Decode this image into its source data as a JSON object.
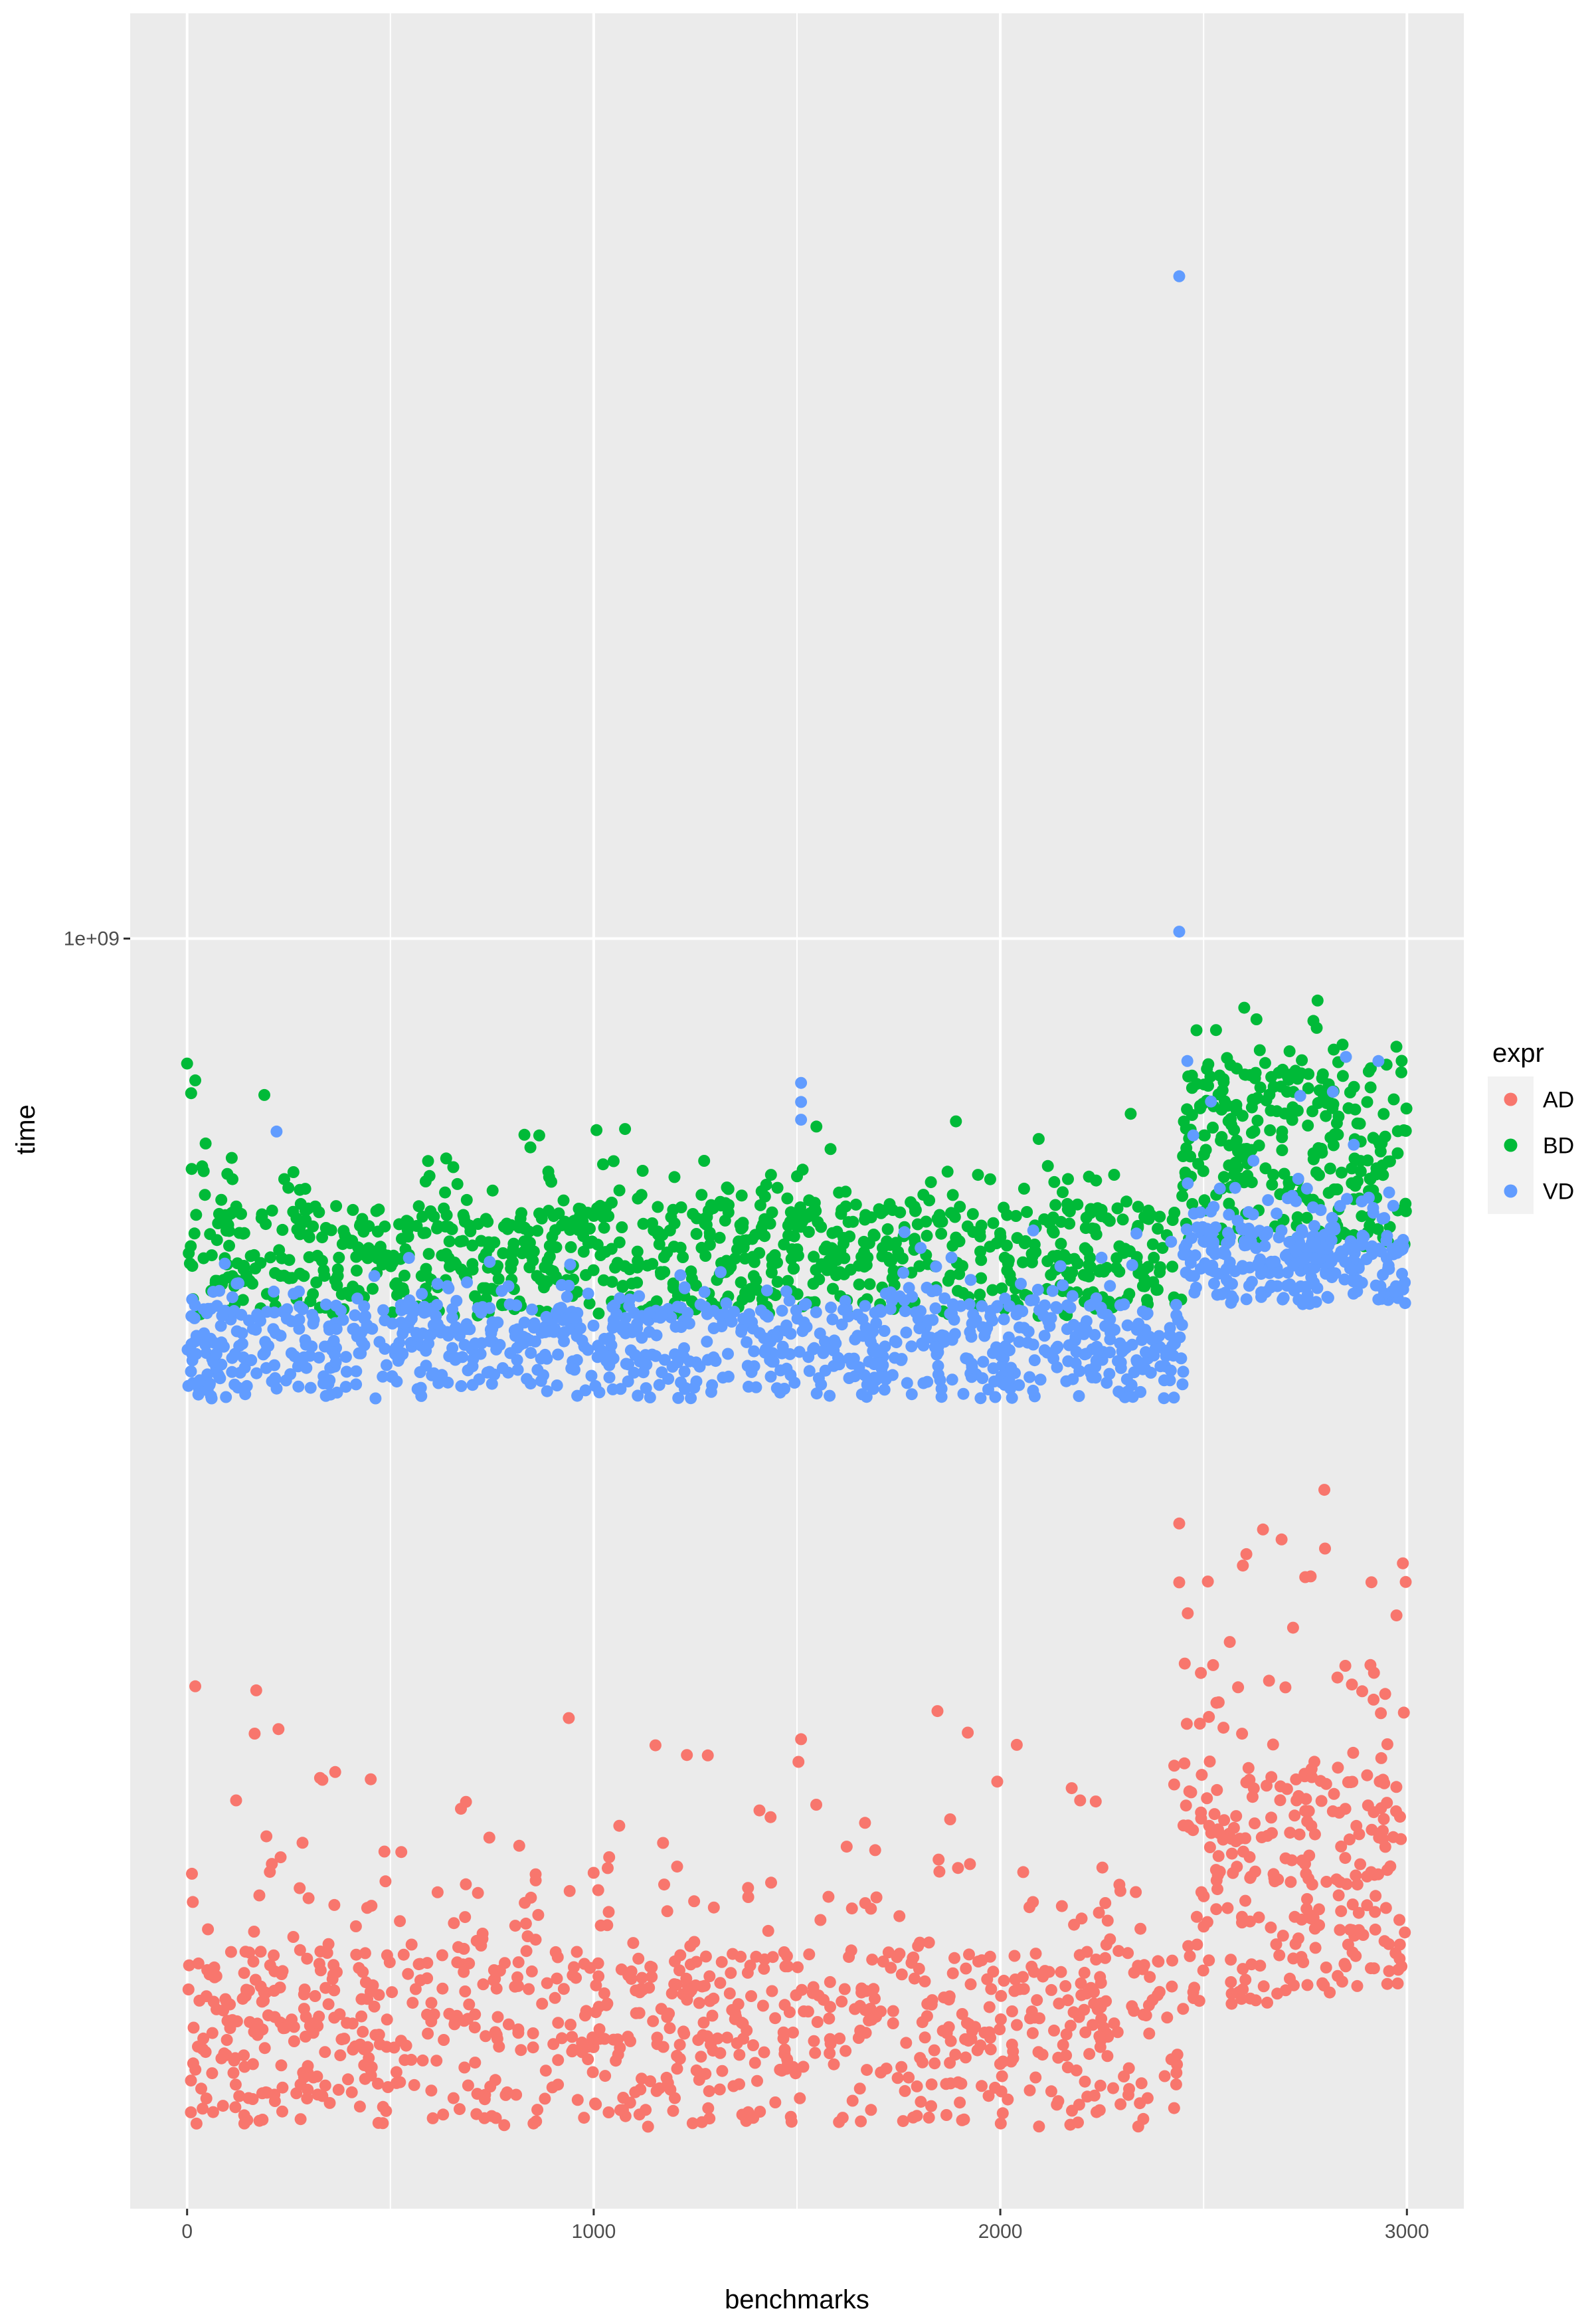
{
  "chart_data": {
    "type": "scatter",
    "xlabel": "benchmarks",
    "ylabel": "time",
    "x_ticks": [
      0,
      1000,
      2000,
      3000
    ],
    "x_tick_labels": [
      "0",
      "1000",
      "2000",
      "3000"
    ],
    "xlim": [
      -140,
      3140
    ],
    "y_scale": "log10",
    "y_ticks": [
      1000000000
    ],
    "y_tick_labels": [
      "1e+09"
    ],
    "ylim": [
      160000000,
      3800000000
    ],
    "grid": true,
    "legend": {
      "title": "expr",
      "position": "right",
      "entries": [
        "AD",
        "BD",
        "VD"
      ]
    },
    "series": [
      {
        "name": "AD",
        "color": "#F8766D",
        "bands": [
          {
            "x_range": [
              0,
              2450
            ],
            "base_min": 180000000,
            "base_max": 232000000,
            "spread_up": 100000000,
            "count": 900
          },
          {
            "x_range": [
              2450,
              3000
            ],
            "base_min": 215000000,
            "base_max": 300000000,
            "spread_up": 170000000,
            "count": 280
          }
        ],
        "outliers": [
          {
            "x": 20,
            "y": 340000000
          },
          {
            "x": 170,
            "y": 338000000
          },
          {
            "x": 1510,
            "y": 315000000
          },
          {
            "x": 1920,
            "y": 318000000
          },
          {
            "x": 2440,
            "y": 430000000
          },
          {
            "x": 2440,
            "y": 395000000
          },
          {
            "x": 2750,
            "y": 398000000
          },
          {
            "x": 2720,
            "y": 370000000
          },
          {
            "x": 2990,
            "y": 406000000
          }
        ]
      },
      {
        "name": "BD",
        "color": "#00BA38",
        "bands": [
          {
            "x_range": [
              0,
              2450
            ],
            "base_min": 580000000,
            "base_max": 680000000,
            "spread_up": 110000000,
            "count": 900
          },
          {
            "x_range": [
              2450,
              3000
            ],
            "base_min": 640000000,
            "base_max": 830000000,
            "spread_up": 130000000,
            "count": 280
          }
        ],
        "outliers": [
          {
            "x": 0,
            "y": 835000000
          },
          {
            "x": 10,
            "y": 800000000
          },
          {
            "x": 20,
            "y": 815000000
          },
          {
            "x": 190,
            "y": 798000000
          },
          {
            "x": 2600,
            "y": 905000000
          },
          {
            "x": 2630,
            "y": 890000000
          },
          {
            "x": 2770,
            "y": 888000000
          },
          {
            "x": 2820,
            "y": 852000000
          }
        ]
      },
      {
        "name": "VD",
        "color": "#619CFF",
        "bands": [
          {
            "x_range": [
              0,
              2450
            ],
            "base_min": 515000000,
            "base_max": 590000000,
            "spread_up": 80000000,
            "count": 900
          },
          {
            "x_range": [
              2450,
              3000
            ],
            "base_min": 590000000,
            "base_max": 660000000,
            "spread_up": 160000000,
            "count": 280
          }
        ],
        "outliers": [
          {
            "x": 2440,
            "y": 2600000000
          },
          {
            "x": 2440,
            "y": 1010000000
          },
          {
            "x": 1510,
            "y": 812000000
          },
          {
            "x": 1510,
            "y": 790000000
          },
          {
            "x": 1510,
            "y": 770000000
          },
          {
            "x": 2460,
            "y": 838000000
          },
          {
            "x": 2850,
            "y": 843000000
          },
          {
            "x": 2930,
            "y": 838000000
          },
          {
            "x": 220,
            "y": 757000000
          }
        ]
      }
    ]
  }
}
